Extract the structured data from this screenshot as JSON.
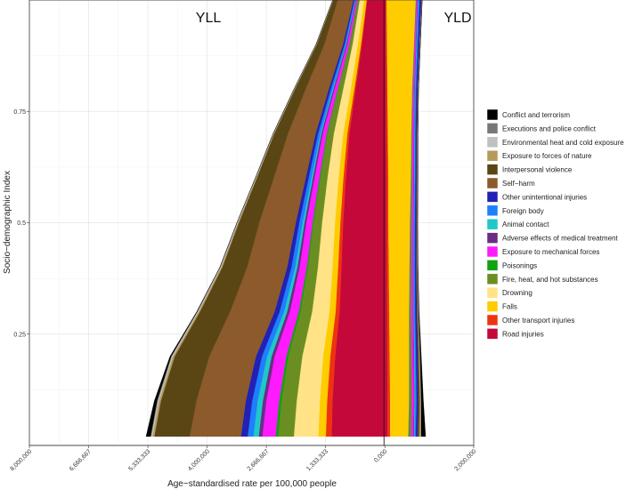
{
  "chart_data": {
    "type": "area",
    "orientation": "horizontal-stacked-mirrored",
    "title": "",
    "xlabel": "Age−standardised rate per 100,000 people",
    "ylabel": "Socio−demographic Index",
    "panel_labels": {
      "left": "YLL",
      "right": "YLD"
    },
    "xlim": [
      8000000,
      -2000000
    ],
    "ylim": [
      0,
      1
    ],
    "x_ticks": [
      {
        "value": 8000000,
        "label": "8,000,000"
      },
      {
        "value": 6666667,
        "label": "6,666,667"
      },
      {
        "value": 5333333,
        "label": "5,333,333"
      },
      {
        "value": 4000000,
        "label": "4,000,000"
      },
      {
        "value": 2666667,
        "label": "2,666,667"
      },
      {
        "value": 1333333,
        "label": "1,333,333"
      },
      {
        "value": 0,
        "label": "0,000"
      },
      {
        "value": -2000000,
        "label": "2,000,000"
      }
    ],
    "y_ticks": [
      {
        "value": 0.25,
        "label": "0.25"
      },
      {
        "value": 0.5,
        "label": "0.5"
      },
      {
        "value": 0.75,
        "label": "0.75"
      }
    ],
    "grid": true,
    "legend_position": "right",
    "sdi": [
      0.02,
      0.1,
      0.2,
      0.3,
      0.4,
      0.5,
      0.6,
      0.7,
      0.8,
      0.9,
      1.0
    ],
    "yll_series": [
      {
        "name": "Road injuries",
        "color": "#C4083A",
        "values": [
          1200000,
          1180000,
          1120000,
          1020000,
          980000,
          940000,
          880000,
          800000,
          660000,
          520000,
          400000
        ]
      },
      {
        "name": "Other transport injuries",
        "color": "#EE3311",
        "values": [
          130000,
          120000,
          110000,
          90000,
          75000,
          65000,
          55000,
          45000,
          30000,
          20000,
          10000
        ]
      },
      {
        "name": "Falls",
        "color": "#FFCC00",
        "values": [
          170000,
          165000,
          160000,
          140000,
          125000,
          120000,
          110000,
          95000,
          80000,
          70000,
          60000
        ]
      },
      {
        "name": "Drowning",
        "color": "#FFE386",
        "values": [
          550000,
          520000,
          470000,
          390000,
          330000,
          290000,
          250000,
          210000,
          170000,
          120000,
          100000
        ]
      },
      {
        "name": "Fire, heat, and hot substances",
        "color": "#6B8E23",
        "values": [
          350000,
          340000,
          310000,
          260000,
          220000,
          190000,
          160000,
          140000,
          110000,
          60000,
          35000
        ]
      },
      {
        "name": "Poisonings",
        "color": "#0FA30F",
        "values": [
          60000,
          55000,
          50000,
          40000,
          30000,
          25000,
          22000,
          20000,
          15000,
          12000,
          10000
        ]
      },
      {
        "name": "Exposure to mechanical forces",
        "color": "#FF1AFF",
        "values": [
          300000,
          290000,
          260000,
          200000,
          160000,
          140000,
          110000,
          90000,
          70000,
          50000,
          30000
        ]
      },
      {
        "name": "Adverse effects of medical treatment",
        "color": "#6B2C86",
        "values": [
          80000,
          78000,
          72000,
          60000,
          50000,
          42000,
          36000,
          30000,
          24000,
          18000,
          12000
        ]
      },
      {
        "name": "Animal contact",
        "color": "#1FC8C8",
        "values": [
          120000,
          115000,
          100000,
          70000,
          50000,
          40000,
          30000,
          20000,
          15000,
          10000,
          8000
        ]
      },
      {
        "name": "Foreign body",
        "color": "#1E7FFF",
        "values": [
          130000,
          125000,
          115000,
          100000,
          85000,
          75000,
          65000,
          55000,
          45000,
          30000,
          20000
        ]
      },
      {
        "name": "Other unintentional injuries",
        "color": "#2121B5",
        "values": [
          150000,
          145000,
          135000,
          115000,
          95000,
          80000,
          65000,
          55000,
          45000,
          35000,
          25000
        ]
      },
      {
        "name": "Self−harm",
        "color": "#8C5A2B",
        "values": [
          1150000,
          1110000,
          1050000,
          1000000,
          900000,
          820000,
          720000,
          620000,
          520000,
          420000,
          350000
        ]
      },
      {
        "name": "Interpersonal violence",
        "color": "#5A4614",
        "values": [
          800000,
          800000,
          780000,
          680000,
          560000,
          460000,
          380000,
          310000,
          240000,
          170000,
          100000
        ]
      },
      {
        "name": "Exposure to forces of nature",
        "color": "#B59A5A",
        "values": [
          40000,
          40000,
          38000,
          30000,
          25000,
          20000,
          15000,
          12000,
          10000,
          8000,
          6000
        ]
      },
      {
        "name": "Environmental heat and cold exposure",
        "color": "#C0C0C0",
        "values": [
          30000,
          30000,
          28000,
          22000,
          18000,
          15000,
          12000,
          10000,
          8000,
          6000,
          5000
        ]
      },
      {
        "name": "Executions and police conflict",
        "color": "#777777",
        "values": [
          15000,
          15000,
          12000,
          10000,
          8000,
          6000,
          5000,
          4000,
          3000,
          2000,
          1000
        ]
      },
      {
        "name": "Conflict and terrorism",
        "color": "#000000",
        "values": [
          100000,
          60000,
          25000,
          10000,
          5000,
          3000,
          2000,
          2000,
          1000,
          1000,
          1000
        ]
      }
    ],
    "yld_series": [
      {
        "name": "Road injuries",
        "color": "#C4083A",
        "values": [
          60000,
          60000,
          55000,
          50000,
          45000,
          40000,
          40000,
          35000,
          30000,
          25000,
          20000
        ]
      },
      {
        "name": "Other transport injuries",
        "color": "#EE3311",
        "values": [
          60000,
          60000,
          55000,
          50000,
          45000,
          40000,
          40000,
          35000,
          30000,
          25000,
          20000
        ]
      },
      {
        "name": "Falls",
        "color": "#FFCC00",
        "values": [
          400000,
          420000,
          430000,
          440000,
          460000,
          480000,
          500000,
          520000,
          550000,
          600000,
          650000
        ]
      },
      {
        "name": "Drowning",
        "color": "#FFE386",
        "values": [
          5000,
          5000,
          5000,
          5000,
          5000,
          5000,
          5000,
          5000,
          5000,
          5000,
          5000
        ]
      },
      {
        "name": "Fire, heat, and hot substances",
        "color": "#6B8E23",
        "values": [
          60000,
          55000,
          50000,
          40000,
          35000,
          30000,
          25000,
          20000,
          15000,
          12000,
          10000
        ]
      },
      {
        "name": "Poisonings",
        "color": "#0FA30F",
        "values": [
          5000,
          5000,
          5000,
          5000,
          5000,
          5000,
          5000,
          5000,
          5000,
          5000,
          5000
        ]
      },
      {
        "name": "Exposure to mechanical forces",
        "color": "#FF1AFF",
        "values": [
          50000,
          50000,
          48000,
          45000,
          40000,
          38000,
          35000,
          33000,
          30000,
          28000,
          25000
        ]
      },
      {
        "name": "Adverse effects of medical treatment",
        "color": "#6B2C86",
        "values": [
          15000,
          15000,
          14000,
          13000,
          12000,
          12000,
          12000,
          12000,
          12000,
          12000,
          12000
        ]
      },
      {
        "name": "Animal contact",
        "color": "#1FC8C8",
        "values": [
          15000,
          15000,
          14000,
          12000,
          10000,
          9000,
          8000,
          8000,
          8000,
          8000,
          8000
        ]
      },
      {
        "name": "Foreign body",
        "color": "#1E7FFF",
        "values": [
          30000,
          30000,
          28000,
          25000,
          22000,
          20000,
          20000,
          20000,
          22000,
          25000,
          28000
        ]
      },
      {
        "name": "Other unintentional injuries",
        "color": "#2121B5",
        "values": [
          40000,
          40000,
          38000,
          35000,
          32000,
          30000,
          30000,
          30000,
          32000,
          35000,
          40000
        ]
      },
      {
        "name": "Self−harm",
        "color": "#8C5A2B",
        "values": [
          5000,
          5000,
          5000,
          5000,
          5000,
          5000,
          5000,
          5000,
          5000,
          5000,
          5000
        ]
      },
      {
        "name": "Interpersonal violence",
        "color": "#5A4614",
        "values": [
          30000,
          28000,
          25000,
          20000,
          15000,
          12000,
          10000,
          8000,
          6000,
          5000,
          4000
        ]
      },
      {
        "name": "Exposure to forces of nature",
        "color": "#B59A5A",
        "values": [
          25000,
          15000,
          10000,
          6000,
          4000,
          3000,
          2000,
          2000,
          2000,
          2000,
          2000
        ]
      },
      {
        "name": "Environmental heat and cold exposure",
        "color": "#C0C0C0",
        "values": [
          15000,
          12000,
          10000,
          8000,
          6000,
          5000,
          4000,
          4000,
          4000,
          4000,
          4000
        ]
      },
      {
        "name": "Executions and police conflict",
        "color": "#777777",
        "values": [
          2000,
          2000,
          2000,
          2000,
          2000,
          2000,
          2000,
          2000,
          2000,
          2000,
          2000
        ]
      },
      {
        "name": "Conflict and terrorism",
        "color": "#000000",
        "values": [
          100000,
          50000,
          25000,
          10000,
          5000,
          3000,
          2000,
          1000,
          1000,
          1000,
          1000
        ]
      }
    ],
    "legend": [
      {
        "label": "Conflict and terrorism",
        "color": "#000000"
      },
      {
        "label": "Executions and police conflict",
        "color": "#777777"
      },
      {
        "label": "Environmental heat and cold exposure",
        "color": "#C0C0C0"
      },
      {
        "label": "Exposure to forces of nature",
        "color": "#B59A5A"
      },
      {
        "label": "Interpersonal violence",
        "color": "#5A4614"
      },
      {
        "label": "Self−harm",
        "color": "#8C5A2B"
      },
      {
        "label": "Other unintentional injuries",
        "color": "#2121B5"
      },
      {
        "label": "Foreign body",
        "color": "#1E7FFF"
      },
      {
        "label": "Animal contact",
        "color": "#1FC8C8"
      },
      {
        "label": "Adverse effects of medical treatment",
        "color": "#6B2C86"
      },
      {
        "label": "Exposure to mechanical forces",
        "color": "#FF1AFF"
      },
      {
        "label": "Poisonings",
        "color": "#0FA30F"
      },
      {
        "label": "Fire, heat, and hot substances",
        "color": "#6B8E23"
      },
      {
        "label": "Drowning",
        "color": "#FFE386"
      },
      {
        "label": "Falls",
        "color": "#FFCC00"
      },
      {
        "label": "Other transport injuries",
        "color": "#EE3311"
      },
      {
        "label": "Road injuries",
        "color": "#C4083A"
      }
    ]
  }
}
